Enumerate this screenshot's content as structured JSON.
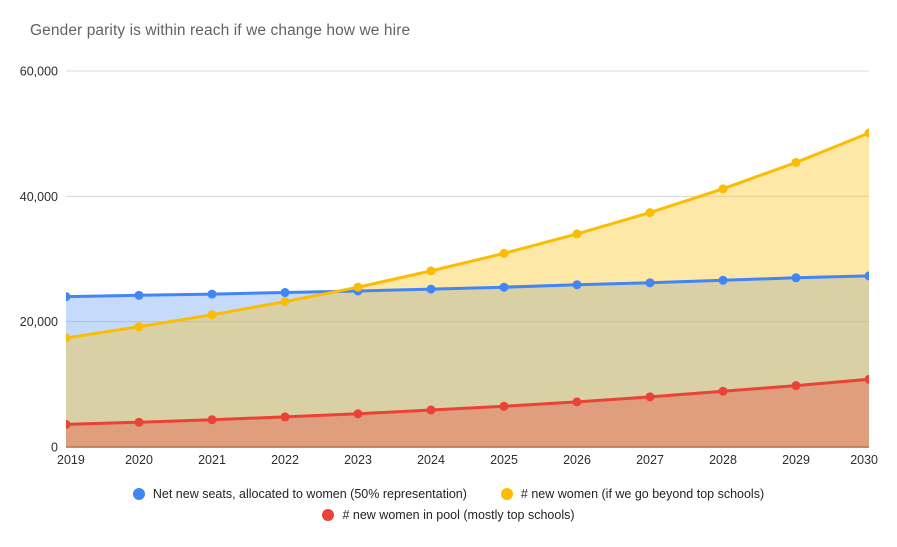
{
  "title": "Gender parity is within reach if we change how we hire",
  "colors": {
    "background": "#ffffff",
    "title_text": "#5f6368",
    "axis_text": "#2e2e2e",
    "gridline": "#dadada",
    "baseline": "#333333",
    "series_blue": "#4285F4",
    "series_yellow": "#FBBC04",
    "series_red": "#EA4335"
  },
  "chart_data": {
    "type": "area",
    "title": "Gender parity is within reach if we change how we hire",
    "x": [
      2019,
      2020,
      2021,
      2022,
      2023,
      2024,
      2025,
      2026,
      2027,
      2028,
      2029,
      2030
    ],
    "series": [
      {
        "name": "Net new seats, allocated to women (50% representation)",
        "color": "#4285F4",
        "fill_opacity": 0.3,
        "values": [
          24000,
          24200,
          24400,
          24650,
          24900,
          25200,
          25500,
          25900,
          26200,
          26600,
          27000,
          27300
        ]
      },
      {
        "name": "# new women (if we go beyond top schools)",
        "color": "#FBBC04",
        "fill_opacity": 0.35,
        "values": [
          17400,
          19200,
          21100,
          23200,
          25500,
          28100,
          30900,
          34000,
          37400,
          41200,
          45400,
          50100
        ]
      },
      {
        "name": "# new women in pool (mostly top schools)",
        "color": "#EA4335",
        "fill_opacity": 0.35,
        "values": [
          3600,
          3950,
          4350,
          4800,
          5300,
          5900,
          6500,
          7200,
          8000,
          8900,
          9800,
          10800
        ]
      }
    ],
    "xlabel": "",
    "ylabel": "",
    "ylim": [
      0,
      60000
    ],
    "y_ticks": [
      {
        "value": 0,
        "label": "0"
      },
      {
        "value": 20000,
        "label": "20,000"
      },
      {
        "value": 40000,
        "label": "40,000"
      },
      {
        "value": 60000,
        "label": "60,000"
      }
    ],
    "grid": true,
    "legend_position": "bottom"
  },
  "legend": {
    "items": [
      {
        "label": "Net new seats, allocated to women (50% representation)",
        "color": "#4285F4"
      },
      {
        "label": "# new women (if we go beyond top schools)",
        "color": "#FBBC04"
      },
      {
        "label": "# new women in pool (mostly top schools)",
        "color": "#EA4335"
      }
    ]
  }
}
